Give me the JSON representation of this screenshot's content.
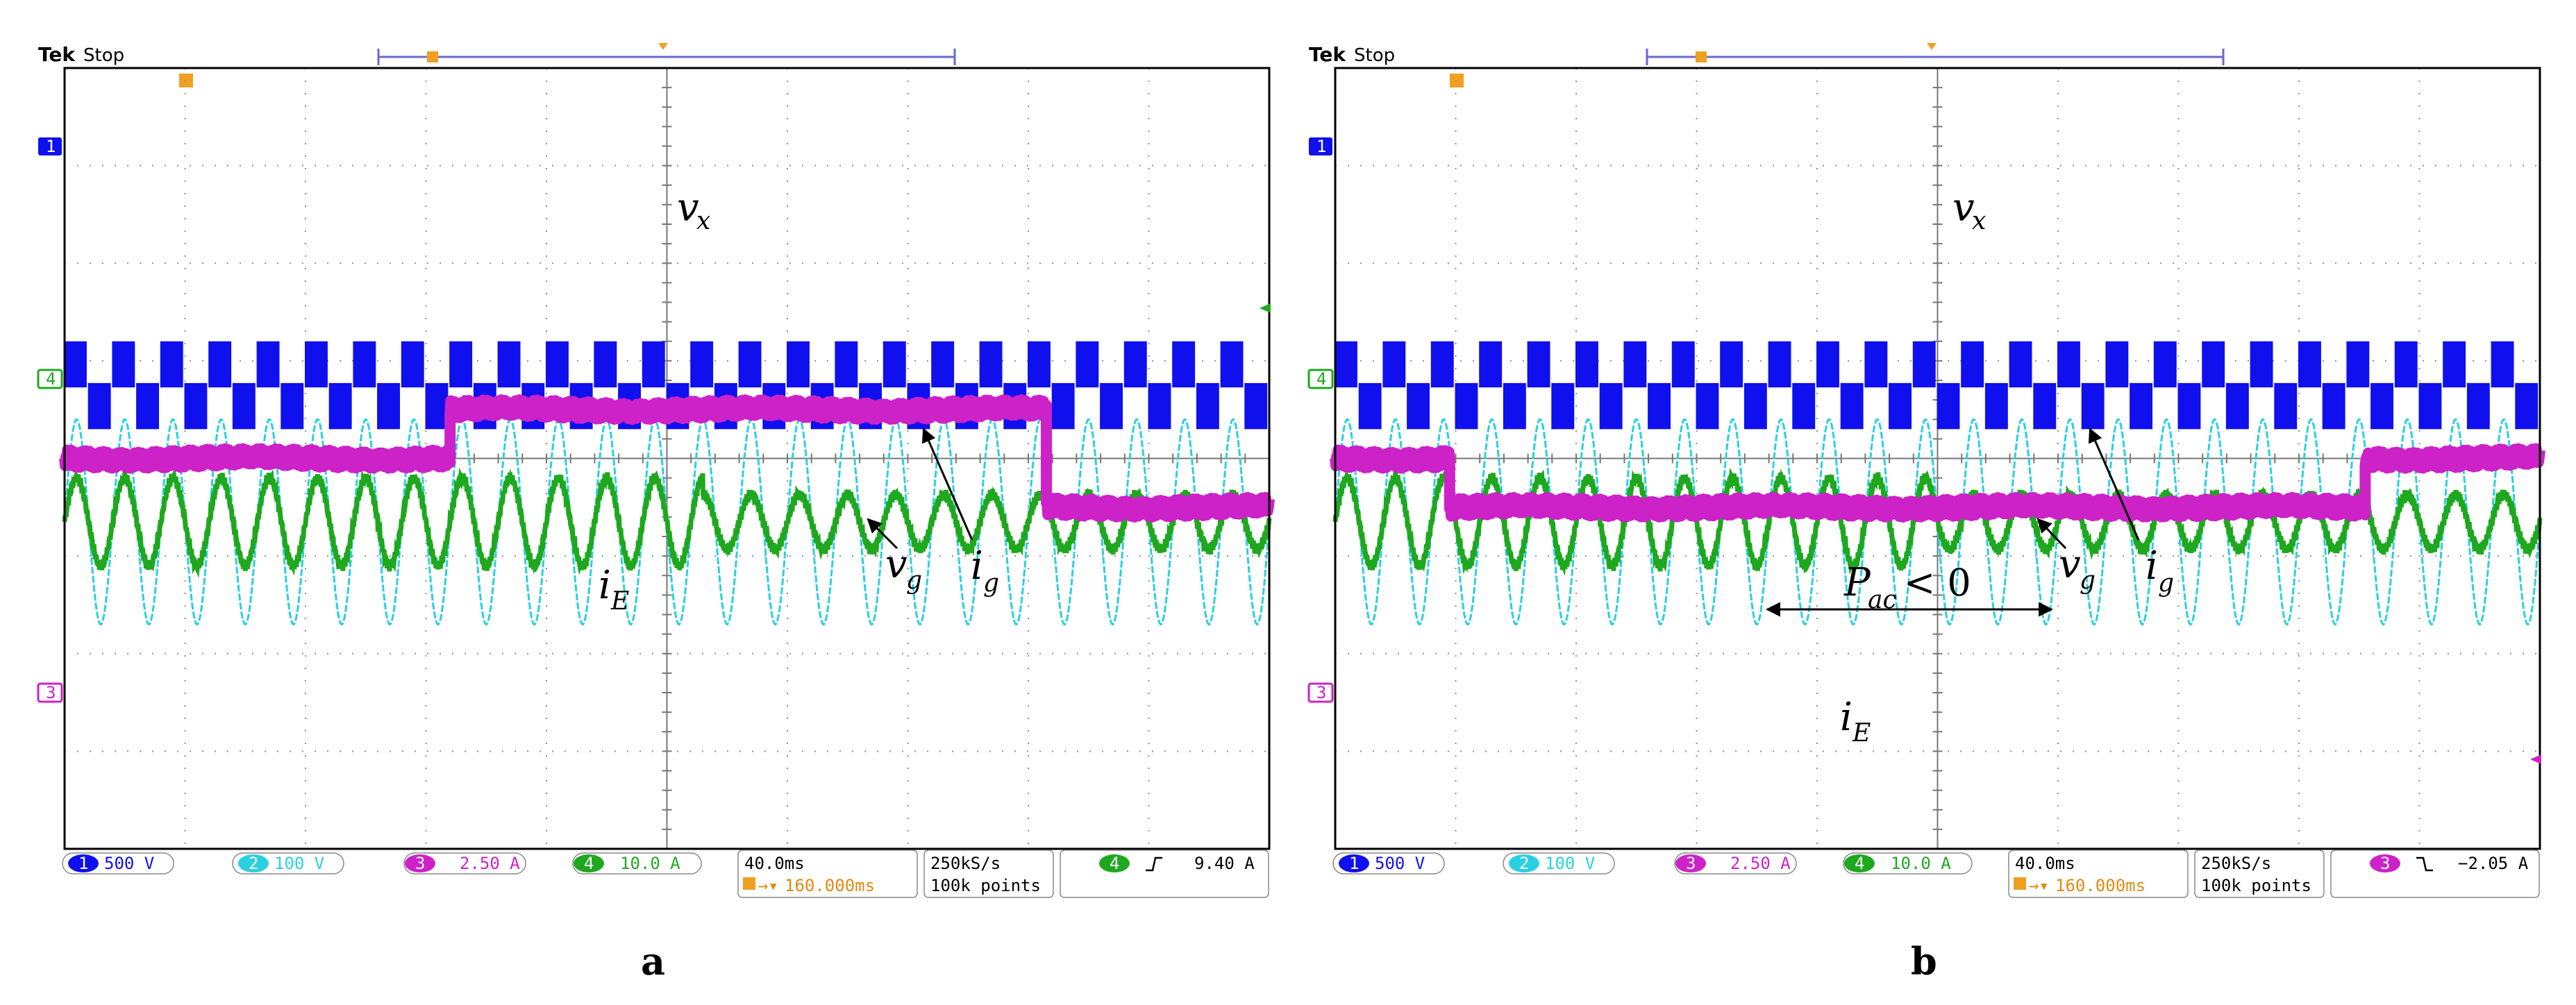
{
  "colors": {
    "ch1": "#1010ee",
    "ch2": "#2ad0e0",
    "ch3": "#cc22c8",
    "ch4": "#1fa81f",
    "grid": "#909090",
    "marker": "#f0a020",
    "frame": "#000000"
  },
  "chart_data": [
    {
      "panel_label": "a",
      "type": "line",
      "header": {
        "brand": "Tek",
        "state": "Stop"
      },
      "channels": {
        "ch1": {
          "number": "1",
          "scale": "500 V"
        },
        "ch2": {
          "number": "2",
          "scale": "100 V"
        },
        "ch3": {
          "number": "3",
          "scale": "2.50 A"
        },
        "ch4": {
          "number": "4",
          "scale": "10.0 A"
        }
      },
      "timebase": {
        "div": "40.0ms",
        "delay": "160.000ms"
      },
      "acq": {
        "rate": "250kS/s",
        "points": "100k points"
      },
      "trigger": {
        "channel": "4",
        "slope": "rising",
        "level": "9.40 A"
      },
      "annotations": {
        "vx": "v",
        "vx_sub": "x",
        "vg": "v",
        "vg_sub": "g",
        "ig": "i",
        "ig_sub": "g",
        "iE": "i",
        "iE_sub": "E"
      },
      "x_range_div": [
        0,
        10
      ],
      "traces": {
        "vx_div": {
          "center": 3.25,
          "amp": 0.45,
          "cycles": 25
        },
        "vg_div": {
          "center": 1.6,
          "amp": 1.05,
          "cycles": 25
        },
        "ig_div": {
          "center": 1.6,
          "amp_before": 0.45,
          "amp_after": 0.28,
          "change_at": 5.3,
          "cycles": 25
        },
        "iE_div": {
          "segments": [
            [
              0,
              3.2,
              4.0
            ],
            [
              3.2,
              8.15,
              3.5
            ],
            [
              8.15,
              10,
              4.5
            ]
          ]
        }
      }
    },
    {
      "panel_label": "b",
      "type": "line",
      "header": {
        "brand": "Tek",
        "state": "Stop"
      },
      "channels": {
        "ch1": {
          "number": "1",
          "scale": "500 V"
        },
        "ch2": {
          "number": "2",
          "scale": "100 V"
        },
        "ch3": {
          "number": "3",
          "scale": "2.50 A"
        },
        "ch4": {
          "number": "4",
          "scale": "10.0 A"
        }
      },
      "timebase": {
        "div": "40.0ms",
        "delay": "160.000ms"
      },
      "acq": {
        "rate": "250kS/s",
        "points": "100k points"
      },
      "trigger": {
        "channel": "3",
        "slope": "falling",
        "level": "−2.05 A"
      },
      "annotations": {
        "vx": "v",
        "vx_sub": "x",
        "vg": "v",
        "vg_sub": "g",
        "ig": "i",
        "ig_sub": "g",
        "iE": "i",
        "iE_sub": "E",
        "pac": "P",
        "pac_sub": "ac",
        "pac_rel": "< 0"
      },
      "x_range_div": [
        0,
        10
      ],
      "traces": {
        "vx_div": {
          "center": 3.25,
          "amp": 0.45,
          "cycles": 25
        },
        "vg_div": {
          "center": 1.6,
          "amp": 1.05,
          "cycles": 25
        },
        "ig_div": {
          "center": 1.6,
          "amp_before": 0.45,
          "amp_after": 0.28,
          "change_at": 5.0,
          "cycles": 25
        },
        "iE_div": {
          "segments": [
            [
              0,
              0.95,
              4.0
            ],
            [
              0.95,
              8.55,
              4.5
            ],
            [
              8.55,
              10,
              4.0
            ]
          ]
        }
      }
    }
  ]
}
